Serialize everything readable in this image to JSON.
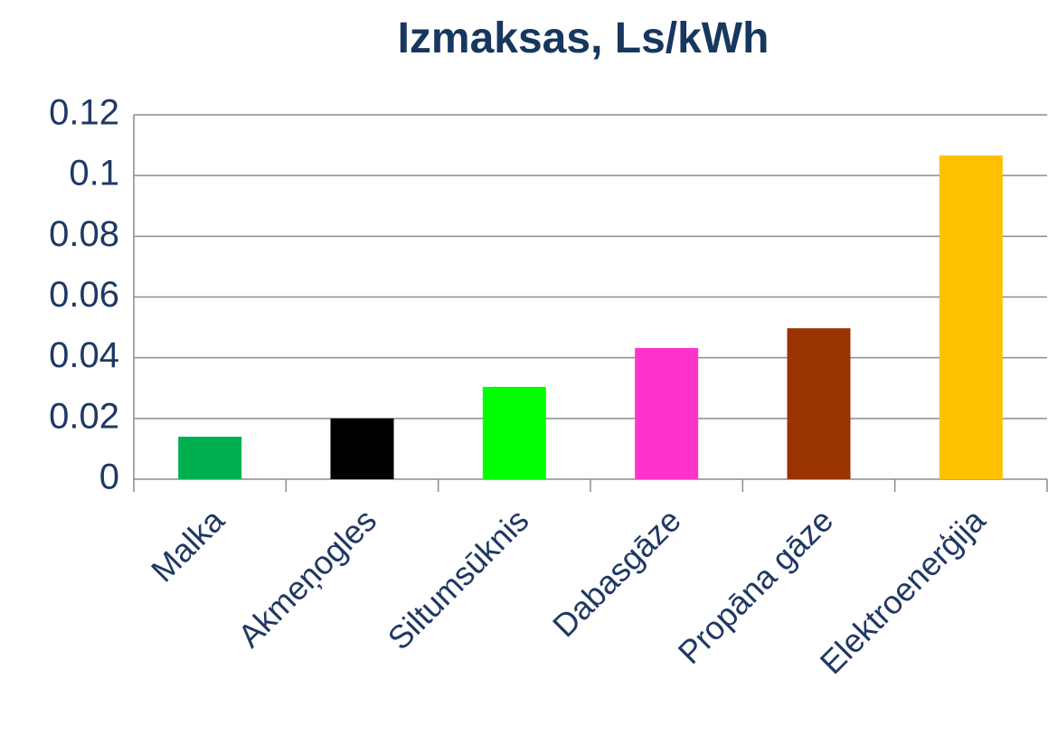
{
  "chart_data": {
    "type": "bar",
    "title": "Izmaksas, Ls/kWh",
    "categories": [
      "Malka",
      "Akmeņogles",
      "Siltumsūknis",
      "Dabasgāze",
      "Propāna gāze",
      "Elektroenerģija"
    ],
    "values": [
      0.014,
      0.02,
      0.0304,
      0.0432,
      0.0497,
      0.1066
    ],
    "colors": [
      "#00b050",
      "#000000",
      "#00ff00",
      "#ff33cc",
      "#993300",
      "#ffc000"
    ],
    "ylim": [
      0,
      0.12
    ],
    "yticks": [
      0,
      0.02,
      0.04,
      0.06,
      0.08,
      0.1,
      0.12
    ],
    "grid": true
  }
}
